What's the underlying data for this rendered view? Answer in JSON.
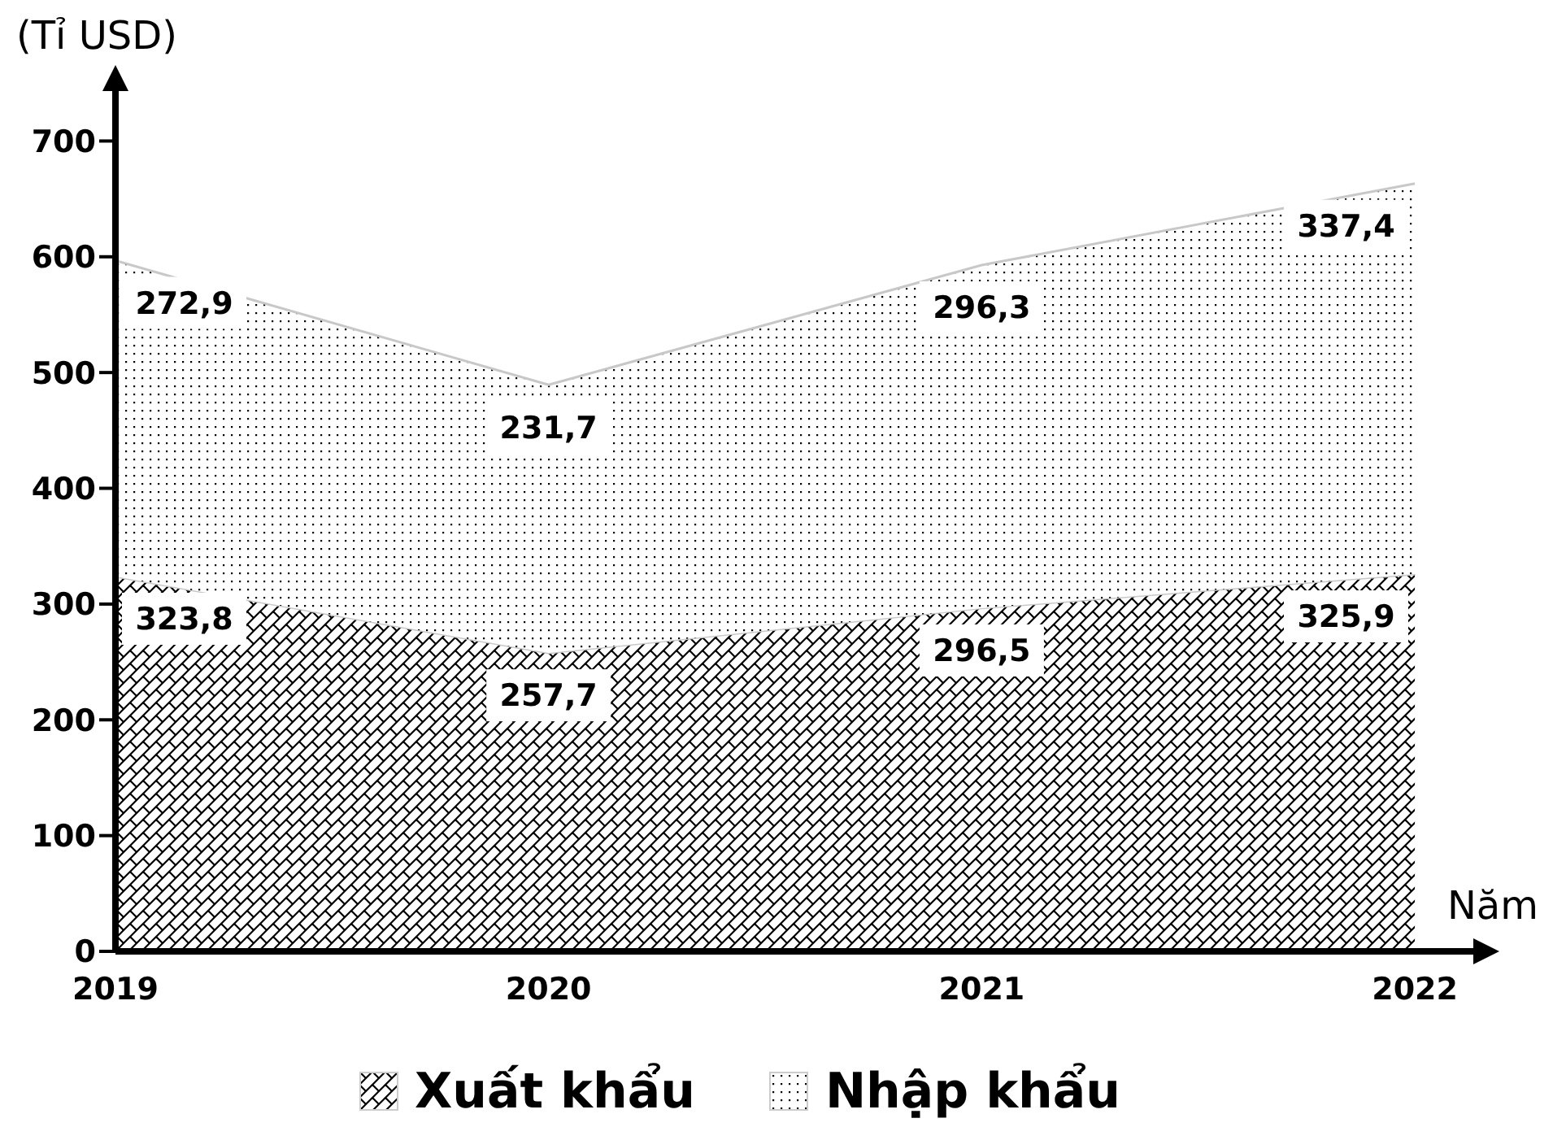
{
  "chart_data": {
    "type": "area",
    "stacked": true,
    "x": [
      2019,
      2020,
      2021,
      2022
    ],
    "xlim": [
      2019,
      2022.15
    ],
    "xticks": [
      2019,
      2020,
      2021,
      2022
    ],
    "ylim": [
      0,
      760
    ],
    "yticks": [
      0,
      100,
      200,
      300,
      400,
      500,
      600,
      700
    ],
    "xlabel": "Năm",
    "ylabel": "(Tỉ USD)",
    "series": [
      {
        "name": "Xuất khẩu",
        "color": "#000000",
        "values": [
          323.8,
          257.7,
          296.5,
          325.9
        ],
        "value_labels": [
          "323,8",
          "257,7",
          "296,5",
          "325,9"
        ]
      },
      {
        "name": "Nhập khẩu",
        "color": "#000000",
        "values": [
          272.9,
          231.7,
          296.3,
          337.4
        ],
        "value_labels": [
          "272,9",
          "231,7",
          "296,3",
          "337,4"
        ]
      }
    ],
    "legend": "bottom"
  }
}
